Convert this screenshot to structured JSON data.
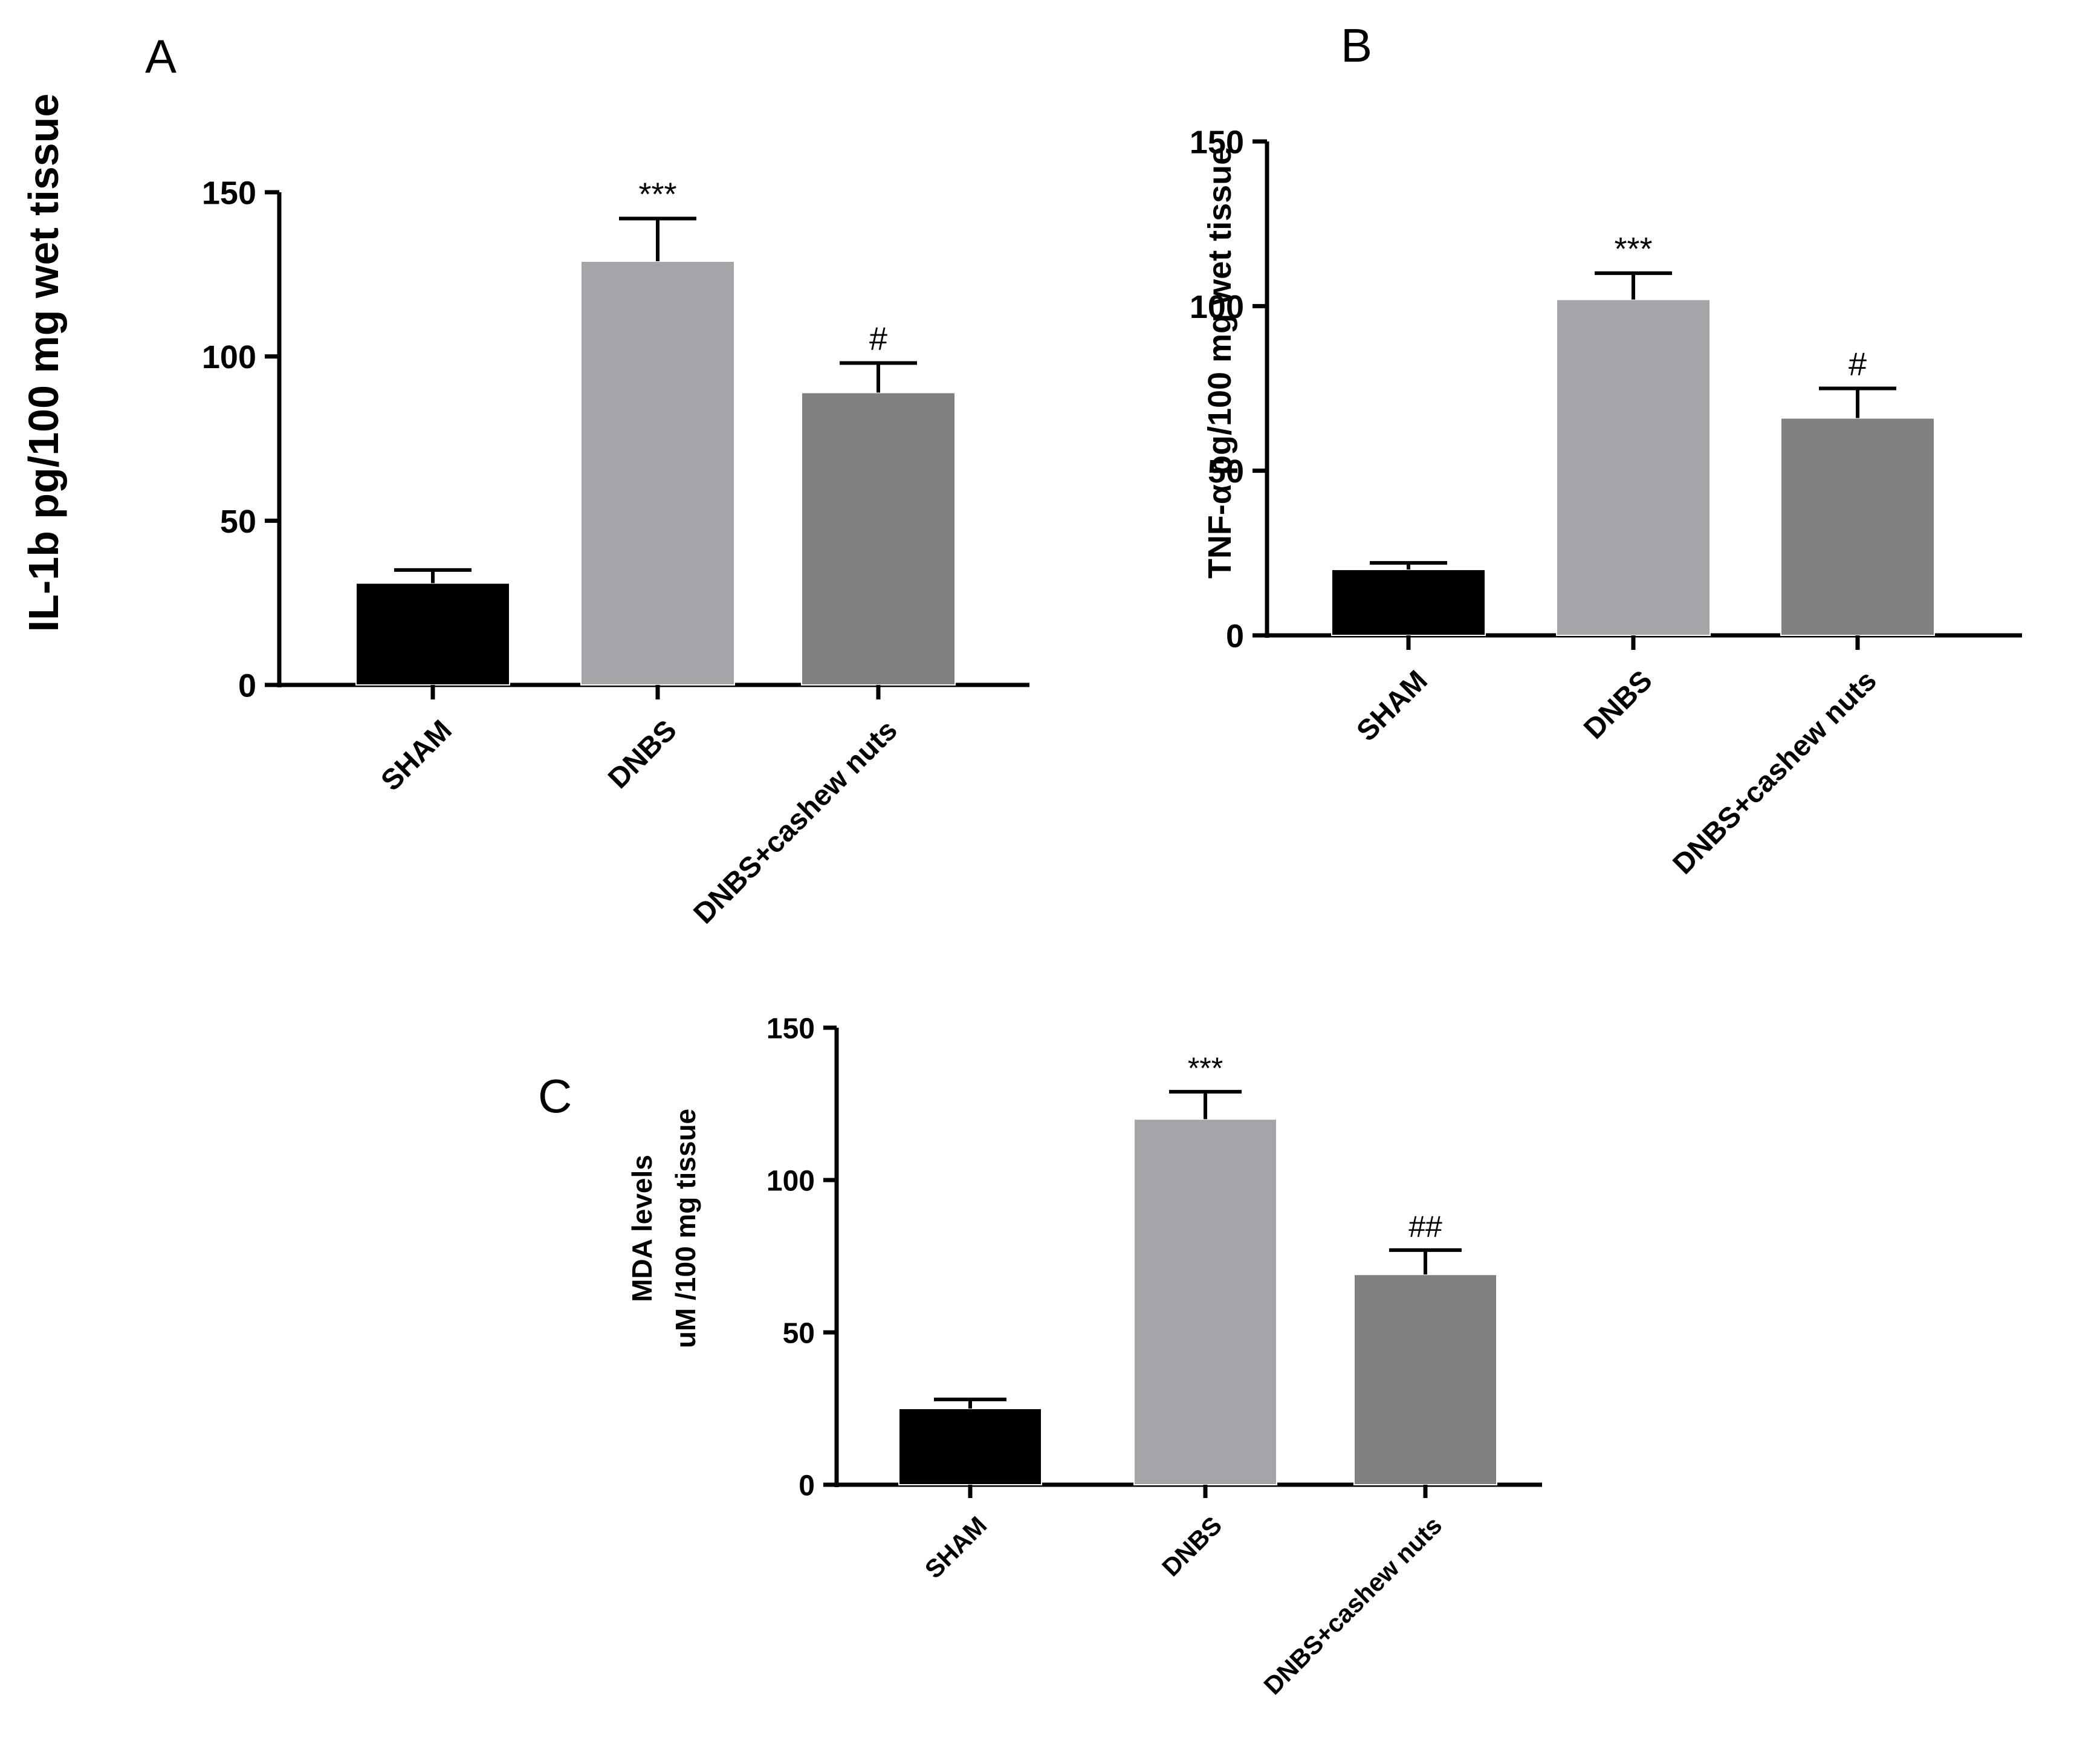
{
  "chart_data": [
    {
      "type": "bar",
      "panel_label": "A",
      "ylabel": "IL-1b pg/100 mg wet tissue",
      "categories": [
        "SHAM",
        "DNBS",
        "DNBS+cashew nuts"
      ],
      "values": [
        31,
        129,
        89
      ],
      "errors": [
        4,
        13,
        9
      ],
      "annotations": [
        "",
        "***",
        "#"
      ],
      "ylim": [
        0,
        150
      ],
      "yticks": [
        "0",
        "50",
        "100",
        "150"
      ],
      "colors": [
        "#000000",
        "#a5a5a9",
        "#808080"
      ],
      "grid": false,
      "legend": "none"
    },
    {
      "type": "bar",
      "panel_label": "B",
      "ylabel": "TNF-α pg/100 mg wet tissue",
      "categories": [
        "SHAM",
        "DNBS",
        "DNBS+cashew nuts"
      ],
      "values": [
        20,
        102,
        66
      ],
      "errors": [
        2,
        8,
        9
      ],
      "annotations": [
        "",
        "***",
        "#"
      ],
      "ylim": [
        0,
        150
      ],
      "yticks": [
        "0",
        "50",
        "100",
        "150"
      ],
      "colors": [
        "#000000",
        "#a5a5a9",
        "#808080"
      ],
      "grid": false,
      "legend": "none"
    },
    {
      "type": "bar",
      "panel_label": "C",
      "ylabel": "MDA levels",
      "ylabel2": "uM /100 mg tissue",
      "categories": [
        "SHAM",
        "DNBS",
        "DNBS+cashew nuts"
      ],
      "values": [
        25,
        120,
        69
      ],
      "errors": [
        3,
        9,
        8
      ],
      "annotations": [
        "",
        "***",
        "##"
      ],
      "ylim": [
        0,
        150
      ],
      "yticks": [
        "0",
        "50",
        "100",
        "150"
      ],
      "colors": [
        "#000000",
        "#a5a5a9",
        "#808080"
      ],
      "grid": false,
      "legend": "none"
    }
  ]
}
